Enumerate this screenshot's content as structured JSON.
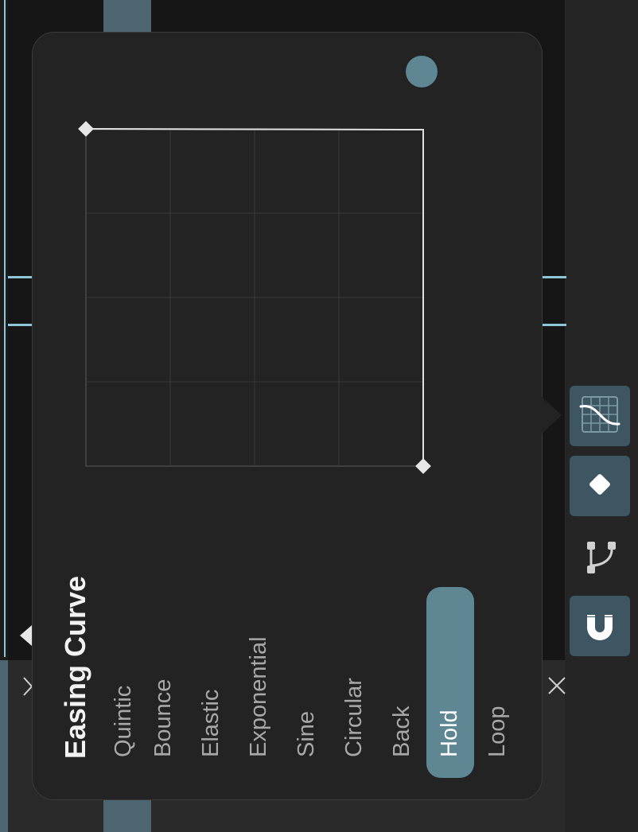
{
  "popup": {
    "title": "Easing Curve",
    "options": [
      {
        "label": "Quintic",
        "selected": false
      },
      {
        "label": "Bounce",
        "selected": false
      },
      {
        "label": "Elastic",
        "selected": false
      },
      {
        "label": "Exponential",
        "selected": false
      },
      {
        "label": "Sine",
        "selected": false
      },
      {
        "label": "Circular",
        "selected": false
      },
      {
        "label": "Back",
        "selected": false
      },
      {
        "label": "Hold",
        "selected": true
      },
      {
        "label": "Loop",
        "selected": false
      }
    ]
  },
  "toolbar": {
    "buttons": [
      {
        "icon": "easing-curve-icon",
        "active": true
      },
      {
        "icon": "keyframe-diamond-icon",
        "active": true
      },
      {
        "icon": "bezier-path-icon",
        "active": false
      },
      {
        "icon": "magnet-snap-icon",
        "active": true
      }
    ]
  },
  "icons": {
    "expand": "chevron-right-icon",
    "close": "close-icon"
  },
  "colors": {
    "accent": "#5e8693",
    "cyan": "#8ec6d8",
    "panel": "#232323"
  }
}
